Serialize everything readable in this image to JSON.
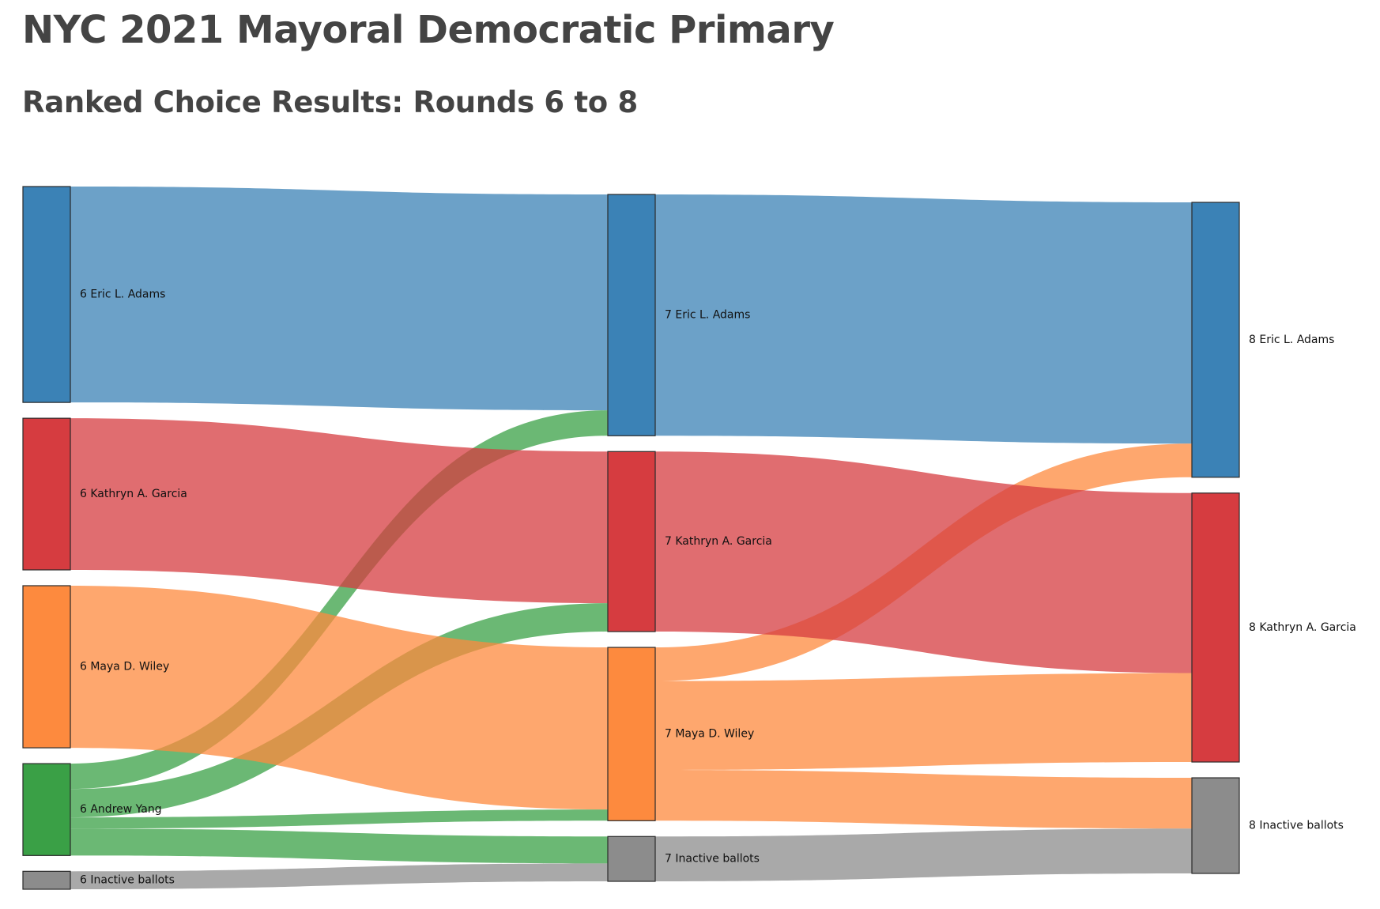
{
  "title": "NYC 2021 Mayoral Democratic Primary",
  "subtitle": "Ranked Choice Results: Rounds 6 to 8",
  "chart_data": {
    "type": "sankey",
    "unit": "votes (approximate)",
    "colors": {
      "Eric L. Adams": "#3b82b6",
      "Kathryn A. Garcia": "#d63c40",
      "Maya D. Wiley": "#fd8a3e",
      "Andrew Yang": "#3aa046",
      "Inactive ballots": "#8c8c8c"
    },
    "rounds": [
      6,
      7,
      8
    ],
    "nodes": [
      {
        "id": "6 Eric L. Adams",
        "round": 6,
        "candidate": "Eric L. Adams",
        "label": "6 Eric L. Adams"
      },
      {
        "id": "6 Kathryn A. Garcia",
        "round": 6,
        "candidate": "Kathryn A. Garcia",
        "label": "6 Kathryn A. Garcia"
      },
      {
        "id": "6 Maya D. Wiley",
        "round": 6,
        "candidate": "Maya D. Wiley",
        "label": "6 Maya D. Wiley"
      },
      {
        "id": "6 Andrew Yang",
        "round": 6,
        "candidate": "Andrew Yang",
        "label": "6 Andrew Yang"
      },
      {
        "id": "6 Inactive ballots",
        "round": 6,
        "candidate": "Inactive ballots",
        "label": "6 Inactive ballots"
      },
      {
        "id": "7 Eric L. Adams",
        "round": 7,
        "candidate": "Eric L. Adams",
        "label": "7 Eric L. Adams"
      },
      {
        "id": "7 Kathryn A. Garcia",
        "round": 7,
        "candidate": "Kathryn A. Garcia",
        "label": "7 Kathryn A. Garcia"
      },
      {
        "id": "7 Maya D. Wiley",
        "round": 7,
        "candidate": "Maya D. Wiley",
        "label": "7 Maya D. Wiley"
      },
      {
        "id": "7 Inactive ballots",
        "round": 7,
        "candidate": "Inactive ballots",
        "label": "7 Inactive ballots"
      },
      {
        "id": "8 Eric L. Adams",
        "round": 8,
        "candidate": "Eric L. Adams",
        "label": "8 Eric L. Adams"
      },
      {
        "id": "8 Kathryn A. Garcia",
        "round": 8,
        "candidate": "Kathryn A. Garcia",
        "label": "8 Kathryn A. Garcia"
      },
      {
        "id": "8 Inactive ballots",
        "round": 8,
        "candidate": "Inactive ballots",
        "label": "8 Inactive ballots"
      }
    ],
    "links": [
      {
        "source": "6 Eric L. Adams",
        "target": "7 Eric L. Adams",
        "value": 289000
      },
      {
        "source": "6 Andrew Yang",
        "target": "7 Eric L. Adams",
        "value": 34000
      },
      {
        "source": "6 Kathryn A. Garcia",
        "target": "7 Kathryn A. Garcia",
        "value": 203000
      },
      {
        "source": "6 Andrew Yang",
        "target": "7 Kathryn A. Garcia",
        "value": 38000
      },
      {
        "source": "6 Maya D. Wiley",
        "target": "7 Maya D. Wiley",
        "value": 217000
      },
      {
        "source": "6 Andrew Yang",
        "target": "7 Maya D. Wiley",
        "value": 15000
      },
      {
        "source": "6 Andrew Yang",
        "target": "7 Inactive ballots",
        "value": 36000
      },
      {
        "source": "6 Inactive ballots",
        "target": "7 Inactive ballots",
        "value": 24000
      },
      {
        "source": "7 Eric L. Adams",
        "target": "8 Eric L. Adams",
        "value": 323000
      },
      {
        "source": "7 Maya D. Wiley",
        "target": "8 Eric L. Adams",
        "value": 45000
      },
      {
        "source": "7 Kathryn A. Garcia",
        "target": "8 Kathryn A. Garcia",
        "value": 241000
      },
      {
        "source": "7 Maya D. Wiley",
        "target": "8 Kathryn A. Garcia",
        "value": 119000
      },
      {
        "source": "7 Maya D. Wiley",
        "target": "8 Inactive ballots",
        "value": 68000
      },
      {
        "source": "7 Inactive ballots",
        "target": "8 Inactive ballots",
        "value": 60000
      }
    ]
  }
}
